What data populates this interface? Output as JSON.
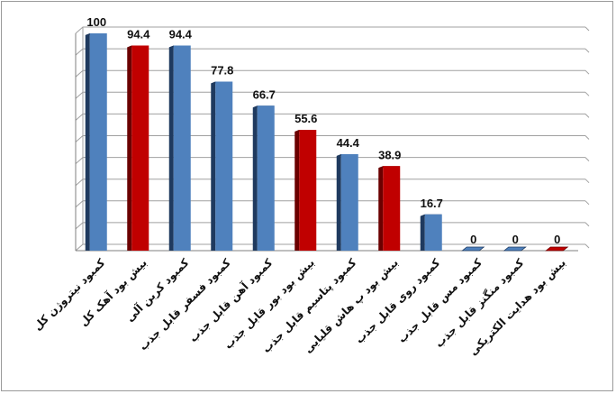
{
  "chart_data": {
    "type": "bar",
    "title": "",
    "xlabel": "",
    "ylabel": "",
    "ylim": [
      0,
      100
    ],
    "grid": true,
    "legend": "none",
    "three_d": true,
    "categories": [
      "کمبود نیتروژن کل",
      "بیش بود آهک کل",
      "کمبود کربن آلی",
      "کمبود فسفر قابل جذب",
      "کمبود آهن قابل جذب",
      "بیش بود بور قابل جذب",
      "کمبود پتاسیم قابل جذب",
      "بیش بود پ هاش قلیایی",
      "کمبود روی قابل جذب",
      "کمبود مس قابل جذب",
      "کمبود منگنز قابل جذب",
      "بیش بود هدایت الکتریکی"
    ],
    "values": [
      100,
      94.4,
      94.4,
      77.8,
      66.7,
      55.6,
      44.4,
      38.9,
      16.7,
      0,
      0,
      0
    ],
    "value_labels": [
      "100",
      "94.4",
      "94.4",
      "77.8",
      "66.7",
      "55.6",
      "44.4",
      "38.9",
      "16.7",
      "0",
      "0",
      "0"
    ],
    "bar_colors": [
      "blue",
      "red",
      "blue",
      "blue",
      "blue",
      "red",
      "blue",
      "red",
      "blue",
      "blue",
      "blue",
      "red"
    ],
    "colors": {
      "blue": "#4f81bd",
      "blue_side": "#1f3a5f",
      "red": "#c00000",
      "red_side": "#6b0000",
      "grid": "#a0a0a0"
    }
  }
}
